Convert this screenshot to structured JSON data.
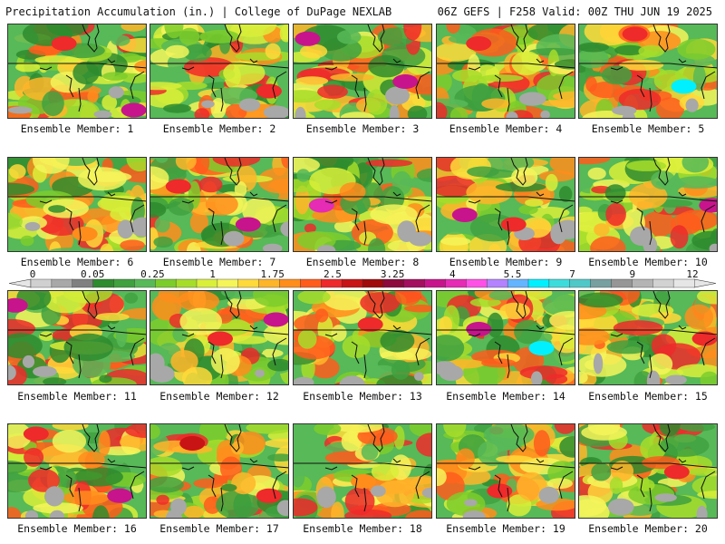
{
  "header": {
    "title_left": "Precipitation Accumulation (in.) | College of DuPage NEXLAB",
    "title_right": "06Z GEFS | F258 Valid: 00Z THU JUN 19 2025"
  },
  "colorbar": {
    "tick_labels": [
      "0",
      "0.05",
      "0.25",
      "1",
      "1.75",
      "2.5",
      "3.25",
      "4",
      "5.5",
      "7",
      "9",
      "12"
    ],
    "colors": [
      "#d0d0d0",
      "#a8a8a8",
      "#808080",
      "#2e8b2e",
      "#3fa13f",
      "#57b957",
      "#7ccd2c",
      "#a6dd2a",
      "#d9ef3a",
      "#f5f55a",
      "#ffd93a",
      "#ffb52a",
      "#ff8d1c",
      "#ff5c1c",
      "#ee2a2a",
      "#c81414",
      "#a00a0a",
      "#8c0a3c",
      "#a3105e",
      "#c8148c",
      "#e62bb4",
      "#ff50e6",
      "#b482ff",
      "#64b4ff",
      "#00f0ff",
      "#3cdcdc",
      "#50c8c8",
      "#78a0a0",
      "#969696",
      "#b4b4b4",
      "#d2d2d2",
      "#e6e6e6"
    ]
  },
  "members": [
    {
      "label": "Ensemble Member: 1"
    },
    {
      "label": "Ensemble Member: 2"
    },
    {
      "label": "Ensemble Member: 3"
    },
    {
      "label": "Ensemble Member: 4"
    },
    {
      "label": "Ensemble Member: 5"
    },
    {
      "label": "Ensemble Member: 6"
    },
    {
      "label": "Ensemble Member: 7"
    },
    {
      "label": "Ensemble Member: 8"
    },
    {
      "label": "Ensemble Member: 9"
    },
    {
      "label": "Ensemble Member: 10"
    },
    {
      "label": "Ensemble Member: 11"
    },
    {
      "label": "Ensemble Member: 12"
    },
    {
      "label": "Ensemble Member: 13"
    },
    {
      "label": "Ensemble Member: 14"
    },
    {
      "label": "Ensemble Member: 15"
    },
    {
      "label": "Ensemble Member: 16"
    },
    {
      "label": "Ensemble Member: 17"
    },
    {
      "label": "Ensemble Member: 18"
    },
    {
      "label": "Ensemble Member: 19"
    },
    {
      "label": "Ensemble Member: 20"
    }
  ]
}
